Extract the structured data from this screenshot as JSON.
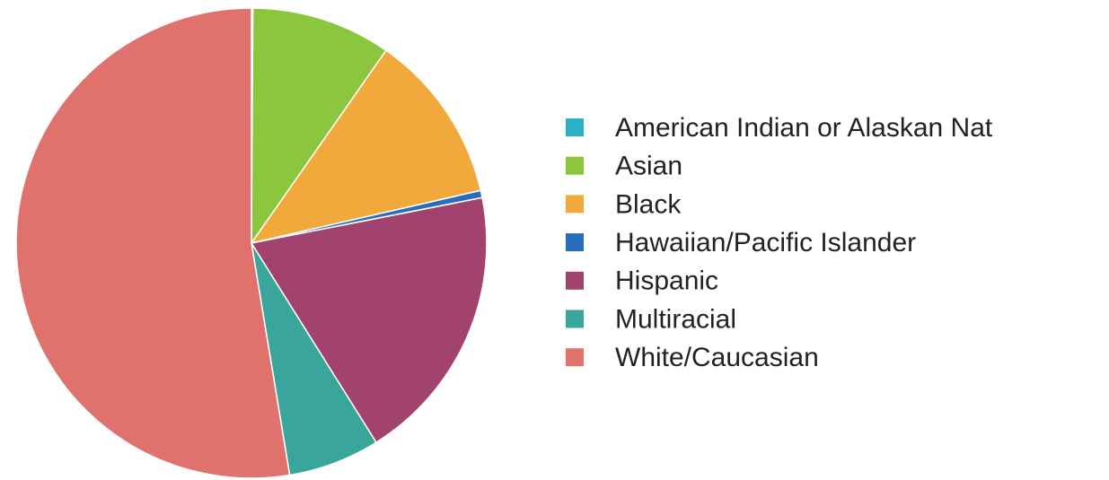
{
  "chart_data": {
    "type": "pie",
    "categories": [
      "American Indian or Alaskan Nat",
      "Asian",
      "Black",
      "Hawaiian/Pacific Islander",
      "Hispanic",
      "Multiracial",
      "White/Caucasian"
    ],
    "values": [
      0.1,
      9.6,
      11.7,
      0.5,
      19.2,
      6.3,
      52.6
    ],
    "colors": [
      "#2bb0c6",
      "#8cc63e",
      "#f2a93b",
      "#2a6dbd",
      "#a2436f",
      "#3aa59b",
      "#e0726d"
    ],
    "legend": "right"
  }
}
